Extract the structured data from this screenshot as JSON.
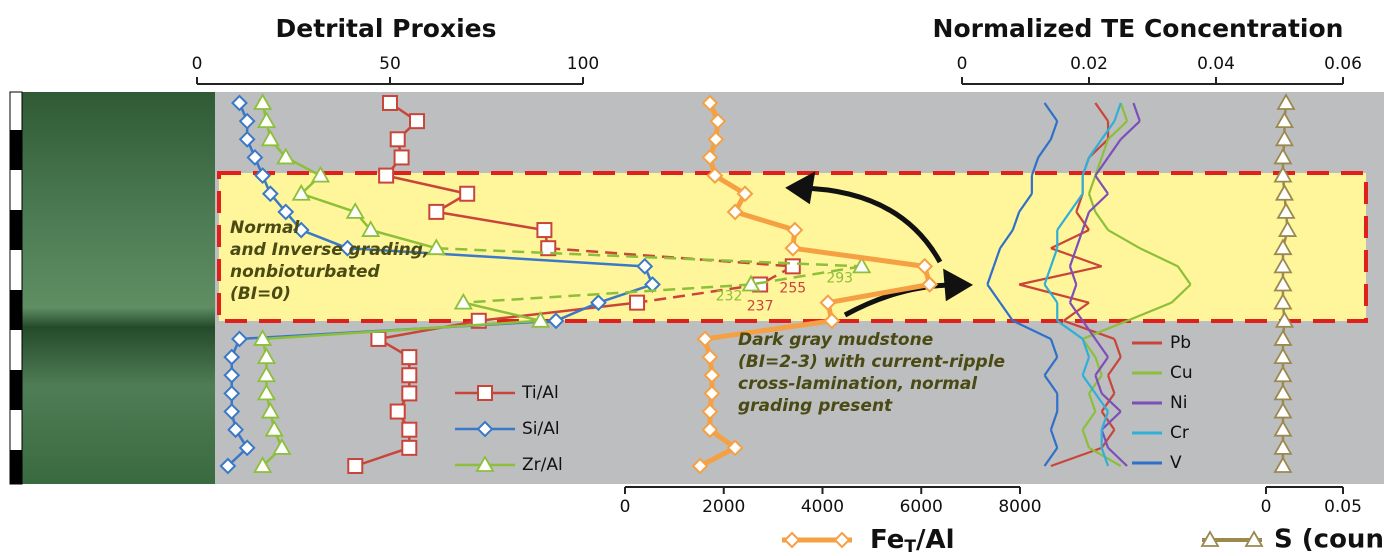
{
  "chart_data": [
    {
      "type": "profile",
      "title": "Detrital Proxies",
      "axis_position": "top",
      "xlim": [
        0,
        100
      ],
      "xticks": [
        0,
        50,
        100
      ],
      "series": [
        {
          "name": "Ti/Al",
          "color": "#c9453a",
          "marker": "square",
          "values": [
            50,
            57,
            52,
            53,
            49,
            70,
            62,
            90,
            91,
            255,
            237,
            114,
            73,
            47,
            55,
            55,
            55,
            52,
            55,
            55,
            41
          ]
        },
        {
          "name": "Si/Al",
          "color": "#3a78c8",
          "marker": "diamond",
          "values": [
            11,
            13,
            13,
            15,
            17,
            19,
            23,
            27,
            39,
            116,
            118,
            104,
            93,
            11,
            9,
            9,
            9,
            9,
            10,
            13,
            8
          ]
        },
        {
          "name": "Zr/Al",
          "color": "#8cbf3a",
          "marker": "triangle",
          "values": [
            17,
            18,
            19,
            23,
            32,
            27,
            41,
            45,
            62,
            293,
            232,
            69,
            89,
            17,
            18,
            18,
            18,
            19,
            20,
            22,
            17
          ]
        }
      ]
    },
    {
      "type": "profile",
      "title": "Normalized TE Concentration",
      "axis_position": "top",
      "xlim": [
        0,
        0.06
      ],
      "xticks": [
        0,
        0.02,
        0.04,
        0.06
      ],
      "series": [
        {
          "name": "Pb",
          "color": "#c9453a",
          "values": [
            0.021,
            0.023,
            0.023,
            0.02,
            0.019,
            0.019,
            0.018,
            0.02,
            0.014,
            0.022,
            0.009,
            0.02,
            0.016,
            0.024,
            0.025,
            0.023,
            0.024,
            0.022,
            0.024,
            0.022,
            0.014
          ]
        },
        {
          "name": "Cu",
          "color": "#8cbf3a",
          "values": [
            0.025,
            0.026,
            0.023,
            0.022,
            0.021,
            0.02,
            0.021,
            0.023,
            0.028,
            0.034,
            0.036,
            0.033,
            0.026,
            0.019,
            0.021,
            0.022,
            0.02,
            0.021,
            0.019,
            0.02,
            0.025
          ]
        },
        {
          "name": "Ni",
          "color": "#7d4fb8",
          "values": [
            0.027,
            0.028,
            0.025,
            0.023,
            0.021,
            0.023,
            0.02,
            0.019,
            0.018,
            0.017,
            0.018,
            0.017,
            0.019,
            0.021,
            0.023,
            0.021,
            0.022,
            0.025,
            0.022,
            0.023,
            0.026
          ]
        },
        {
          "name": "Cr",
          "color": "#2fb0d8",
          "values": [
            0.025,
            0.024,
            0.022,
            0.02,
            0.019,
            0.019,
            0.017,
            0.015,
            0.015,
            0.014,
            0.013,
            0.015,
            0.015,
            0.019,
            0.02,
            0.019,
            0.021,
            0.023,
            0.022,
            0.022,
            0.023
          ]
        },
        {
          "name": "V",
          "color": "#2f70c8",
          "values": [
            0.013,
            0.015,
            0.014,
            0.012,
            0.011,
            0.011,
            0.009,
            0.008,
            0.006,
            0.005,
            0.004,
            0.006,
            0.008,
            0.014,
            0.015,
            0.013,
            0.015,
            0.015,
            0.014,
            0.015,
            0.013
          ]
        }
      ]
    },
    {
      "type": "profile",
      "axis_position": "bottom",
      "xlim": [
        0,
        8000
      ],
      "xticks": [
        0,
        2000,
        4000,
        6000,
        8000
      ],
      "series": [
        {
          "name": "Fe",
          "name_subscript": "T",
          "name_suffix": "/Al",
          "color": "#f5a043",
          "marker": "diamond",
          "values": [
            1720,
            1880,
            1840,
            1720,
            1820,
            2430,
            2230,
            3440,
            3400,
            6070,
            6170,
            4110,
            4190,
            1620,
            1720,
            1760,
            1760,
            1720,
            1720,
            2230,
            1520
          ]
        }
      ]
    },
    {
      "type": "profile",
      "axis_position": "bottom",
      "xlim": [
        0,
        0.05
      ],
      "xticks": [
        0,
        0.05
      ],
      "series": [
        {
          "name": "S (counts)",
          "color": "#9a8a50",
          "marker": "triangle",
          "values": [
            0.013,
            0.012,
            0.012,
            0.011,
            0.011,
            0.012,
            0.013,
            0.014,
            0.011,
            0.011,
            0.011,
            0.011,
            0.012,
            0.011,
            0.011,
            0.011,
            0.011,
            0.011,
            0.011,
            0.011,
            0.011
          ]
        }
      ]
    }
  ],
  "annotations": {
    "interval_note": [
      "Normal",
      "and Inverse grading,",
      "nonbioturbated",
      "(BI=0)"
    ],
    "background_note": [
      "Dark gray mudstone",
      "(BI=2-3) with current-ripple",
      "cross-lamination, normal",
      "grading present"
    ]
  }
}
